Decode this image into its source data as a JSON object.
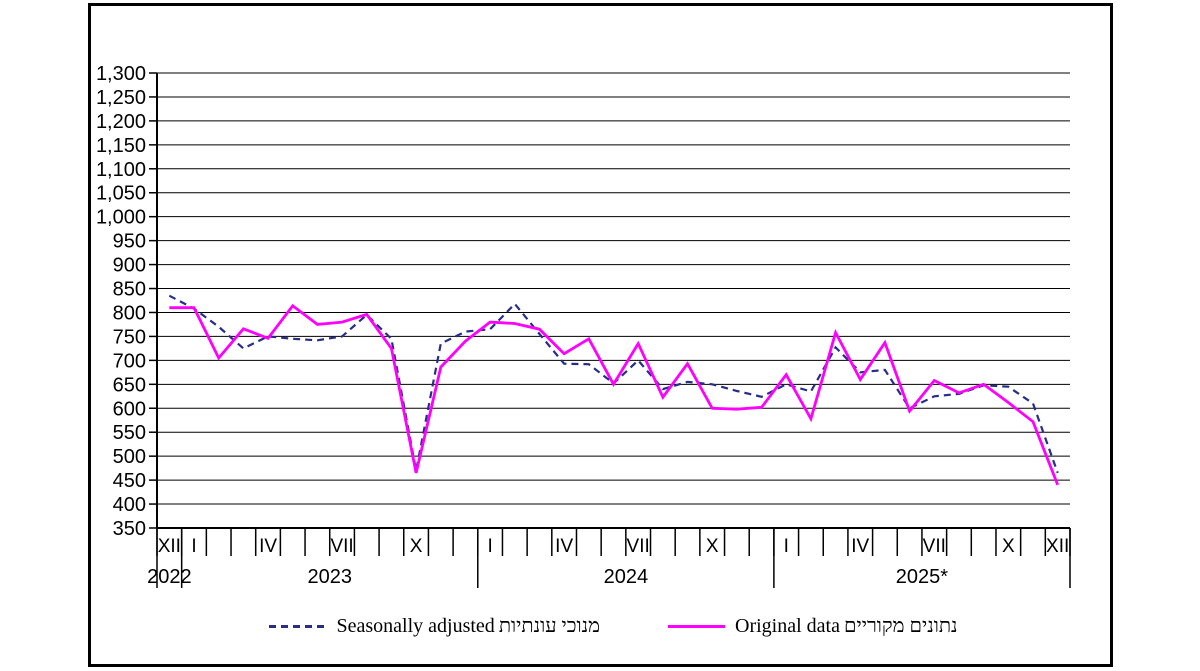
{
  "chart_data": {
    "type": "line",
    "title": "",
    "categories": [
      "XII/2022",
      "I/2023",
      "II/2023",
      "III/2023",
      "IV/2023",
      "V/2023",
      "VI/2023",
      "VII/2023",
      "VIII/2023",
      "IX/2023",
      "X/2023",
      "XI/2023",
      "XII/2023",
      "I/2024",
      "II/2024",
      "III/2024",
      "IV/2024",
      "V/2024",
      "VI/2024",
      "VII/2024",
      "VIII/2024",
      "IX/2024",
      "X/2024",
      "XI/2024",
      "XII/2024",
      "I/2025",
      "II/2025",
      "III/2025",
      "IV/2025",
      "V/2025",
      "VI/2025",
      "VII/2025",
      "VIII/2025",
      "IX/2025",
      "X/2025",
      "XI/2025",
      "XII/2025"
    ],
    "month_labels": [
      "XII",
      "I",
      "",
      "",
      "IV",
      "",
      "",
      "VII",
      "",
      "",
      "X",
      "",
      "",
      "I",
      "",
      "",
      "IV",
      "",
      "",
      "VII",
      "",
      "",
      "X",
      "",
      "",
      "I",
      "",
      "",
      "IV",
      "",
      "",
      "VII",
      "",
      "",
      "X",
      "",
      "XII"
    ],
    "years": [
      {
        "label": "2022",
        "from": 0,
        "to": 1
      },
      {
        "label": "2023",
        "from": 1,
        "to": 13
      },
      {
        "label": "2024",
        "from": 13,
        "to": 25
      },
      {
        "label": "2025*",
        "from": 25,
        "to": 37
      }
    ],
    "ylim": [
      350,
      1300
    ],
    "y_tick_step": 50,
    "y_tick_labels": [
      "1,300",
      "1,250",
      "1,200",
      "1,150",
      "1,100",
      "1,050",
      "1,000",
      "950",
      "900",
      "850",
      "800",
      "750",
      "700",
      "650",
      "600",
      "550",
      "500",
      "450",
      "400",
      "350"
    ],
    "grid": true,
    "legend_position": "bottom",
    "series": [
      {
        "name": "Seasonally adjusted",
        "name_he": "מנוכי עונתיות",
        "color": "#262E87",
        "style": "dashed",
        "values": [
          835,
          808,
          770,
          725,
          750,
          745,
          742,
          750,
          795,
          745,
          470,
          735,
          760,
          765,
          818,
          755,
          693,
          692,
          652,
          700,
          640,
          655,
          650,
          636,
          624,
          650,
          635,
          727,
          675,
          680,
          600,
          625,
          630,
          648,
          645,
          610,
          465
        ]
      },
      {
        "name": "Original data",
        "name_he": "נתונים מקוריים",
        "color": "#FF00FF",
        "style": "solid",
        "values": [
          810,
          810,
          705,
          766,
          746,
          814,
          775,
          780,
          796,
          725,
          465,
          686,
          740,
          780,
          777,
          765,
          714,
          745,
          650,
          735,
          623,
          693,
          600,
          598,
          602,
          670,
          578,
          758,
          660,
          737,
          594,
          658,
          632,
          650,
          612,
          572,
          440
        ]
      }
    ]
  }
}
